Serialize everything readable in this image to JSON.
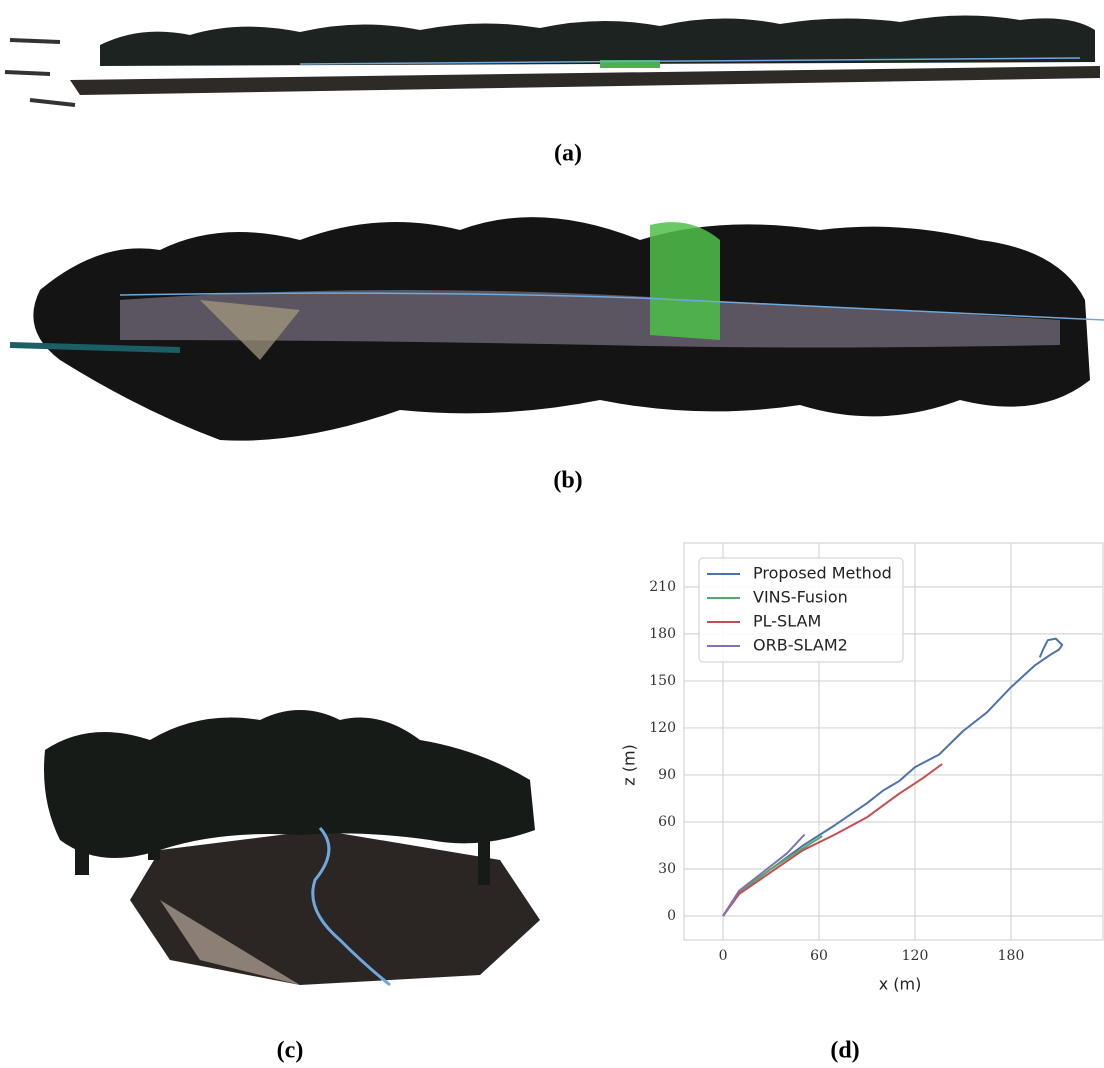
{
  "captions": [
    "(a)",
    "(b)",
    "(c)",
    "(d)"
  ],
  "chart_data": {
    "type": "line",
    "xlabel": "x (m)",
    "ylabel": "z (m)",
    "xlim": [
      -24.4,
      237.5
    ],
    "ylim": [
      -15.3,
      238
    ],
    "xticks": [
      0,
      60,
      120,
      180
    ],
    "yticks": [
      0,
      30,
      60,
      90,
      120,
      150,
      180,
      210
    ],
    "grid": true,
    "legend": "upper left",
    "series": [
      {
        "name": "Proposed Method",
        "color": "#4c72b0",
        "x": [
          0,
          10,
          30,
          50,
          70,
          90,
          100,
          110,
          120,
          135,
          150,
          165,
          180,
          195,
          205,
          210,
          212,
          208,
          203,
          200,
          198
        ],
        "values": [
          0,
          15,
          30,
          45,
          58,
          72,
          80,
          86,
          95,
          103,
          118,
          130,
          146,
          160,
          167,
          170,
          173,
          177,
          176,
          170,
          165
        ]
      },
      {
        "name": "VINS-Fusion",
        "color": "#55a868",
        "x": [
          0,
          10,
          30,
          45,
          62
        ],
        "values": [
          0,
          15,
          30,
          40,
          51
        ]
      },
      {
        "name": "PL-SLAM",
        "color": "#c44e52",
        "x": [
          0,
          10,
          30,
          50,
          70,
          90,
          110,
          125,
          137
        ],
        "values": [
          0,
          14,
          28,
          42,
          52,
          63,
          78,
          88,
          97
        ]
      },
      {
        "name": "ORB-SLAM2",
        "color": "#8172b2",
        "x": [
          0,
          10,
          25,
          40,
          51
        ],
        "values": [
          0,
          16,
          28,
          40,
          52
        ]
      }
    ]
  }
}
